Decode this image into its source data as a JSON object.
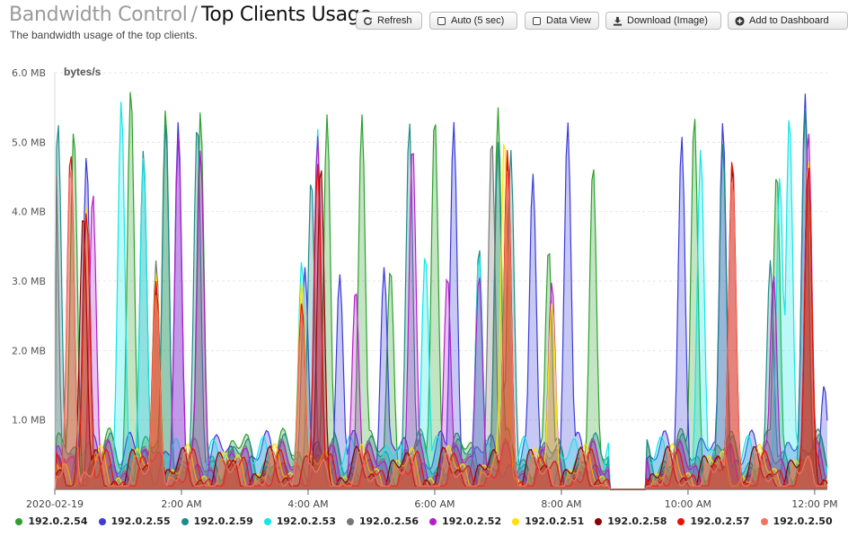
{
  "header": {
    "parent": "Bandwidth Control",
    "separator": "/",
    "title": "Top Clients Usage",
    "subtitle": "The bandwidth usage of the top clients."
  },
  "toolbar": {
    "refresh_label": "Refresh",
    "auto_label": "Auto (5 sec)",
    "dataview_label": "Data View",
    "download_label": "Download (Image)",
    "dashboard_label": "Add to Dashboard"
  },
  "chart_data": {
    "type": "area",
    "ylabel": "bytes/s",
    "ylim": [
      0,
      6.0
    ],
    "y_ticks": [
      "",
      "1.0 MB",
      "2.0 MB",
      "3.0 MB",
      "4.0 MB",
      "5.0 MB",
      "6.0 MB"
    ],
    "xlim_hours": [
      0,
      12.2
    ],
    "x_ticks": [
      {
        "h": 0,
        "label": "2020-02-19"
      },
      {
        "h": 2,
        "label": "2:00 AM"
      },
      {
        "h": 4,
        "label": "4:00 AM"
      },
      {
        "h": 6,
        "label": "6:00 AM"
      },
      {
        "h": 8,
        "label": "8:00 AM"
      },
      {
        "h": 10,
        "label": "10:00 AM"
      },
      {
        "h": 12,
        "label": "12:00 PM"
      }
    ],
    "gap_hours": [
      [
        8.75,
        9.35
      ]
    ],
    "grid": true,
    "legend_placement": "bottom",
    "series": [
      {
        "name": "192.0.2.54",
        "color": "#2ca02c",
        "peaks": [
          [
            0.3,
            5.2
          ],
          [
            1.2,
            5.8
          ],
          [
            1.75,
            5.5
          ],
          [
            2.3,
            5.45
          ],
          [
            4.3,
            5.4
          ],
          [
            4.85,
            5.4
          ],
          [
            5.3,
            3.2
          ],
          [
            6.0,
            5.4
          ],
          [
            7.0,
            5.5
          ],
          [
            7.8,
            3.5
          ],
          [
            8.5,
            4.7
          ],
          [
            10.1,
            5.4
          ],
          [
            11.4,
            4.6
          ]
        ]
      },
      {
        "name": "192.0.2.55",
        "color": "#3b3bd9",
        "peaks": [
          [
            0.5,
            4.8
          ],
          [
            1.95,
            5.3
          ],
          [
            3.95,
            3.2
          ],
          [
            4.5,
            3.1
          ],
          [
            5.2,
            3.2
          ],
          [
            6.3,
            5.3
          ],
          [
            7.55,
            4.55
          ],
          [
            8.1,
            5.3
          ],
          [
            9.9,
            5.1
          ],
          [
            10.55,
            5.3
          ],
          [
            11.85,
            5.7
          ],
          [
            12.15,
            1.5
          ]
        ]
      },
      {
        "name": "192.0.2.59",
        "color": "#1f8a8a",
        "peaks": [
          [
            0.05,
            5.3
          ],
          [
            1.4,
            4.9
          ],
          [
            1.75,
            5.3
          ],
          [
            2.25,
            5.3
          ],
          [
            4.05,
            4.5
          ],
          [
            5.6,
            5.3
          ],
          [
            6.7,
            3.5
          ],
          [
            7.0,
            5.0
          ],
          [
            7.2,
            4.9
          ],
          [
            10.55,
            5.0
          ],
          [
            11.3,
            3.3
          ],
          [
            11.85,
            5.5
          ]
        ]
      },
      {
        "name": "192.0.2.53",
        "color": "#12e6e6",
        "peaks": [
          [
            1.05,
            5.6
          ],
          [
            1.4,
            4.8
          ],
          [
            3.9,
            3.3
          ],
          [
            4.15,
            5.2
          ],
          [
            5.85,
            3.4
          ],
          [
            6.7,
            3.4
          ],
          [
            10.2,
            4.9
          ],
          [
            11.6,
            5.4
          ],
          [
            11.45,
            4.5
          ]
        ]
      },
      {
        "name": "192.0.2.56",
        "color": "#777777",
        "peaks": [
          [
            0.0,
            5.2
          ],
          [
            1.6,
            3.3
          ],
          [
            6.9,
            5.1
          ]
        ]
      },
      {
        "name": "192.0.2.52",
        "color": "#b31fc9",
        "peaks": [
          [
            0.6,
            4.3
          ],
          [
            1.95,
            5.1
          ],
          [
            2.3,
            4.9
          ],
          [
            4.15,
            5.1
          ],
          [
            4.75,
            2.9
          ],
          [
            5.65,
            5.0
          ],
          [
            6.2,
            3.1
          ],
          [
            6.7,
            3.1
          ],
          [
            7.85,
            3.0
          ],
          [
            11.35,
            3.1
          ],
          [
            11.9,
            5.2
          ]
        ]
      },
      {
        "name": "192.0.2.51",
        "color": "#ffe000",
        "peaks": [
          [
            0.5,
            4.1
          ],
          [
            1.6,
            3.1
          ],
          [
            3.9,
            3.0
          ],
          [
            7.1,
            5.1
          ],
          [
            7.85,
            2.7
          ],
          [
            11.9,
            4.8
          ]
        ]
      },
      {
        "name": "192.0.2.58",
        "color": "#8b0000",
        "peaks": [
          [
            0.45,
            4.0
          ],
          [
            1.6,
            2.9
          ],
          [
            4.2,
            4.7
          ],
          [
            7.15,
            4.8
          ],
          [
            10.7,
            4.7
          ],
          [
            11.9,
            4.7
          ]
        ]
      },
      {
        "name": "192.0.2.57",
        "color": "#e8110a",
        "peaks": [
          [
            0.25,
            4.9
          ],
          [
            0.5,
            4.0
          ],
          [
            1.6,
            3.0
          ],
          [
            3.9,
            2.7
          ],
          [
            4.15,
            4.7
          ],
          [
            7.15,
            4.9
          ],
          [
            10.7,
            4.8
          ],
          [
            11.9,
            4.7
          ]
        ]
      },
      {
        "name": "192.0.2.50",
        "color": "#f07460",
        "peaks": [
          [
            0.25,
            4.7
          ],
          [
            1.6,
            2.8
          ],
          [
            3.9,
            2.5
          ],
          [
            7.15,
            4.6
          ],
          [
            10.7,
            4.5
          ]
        ]
      }
    ]
  }
}
